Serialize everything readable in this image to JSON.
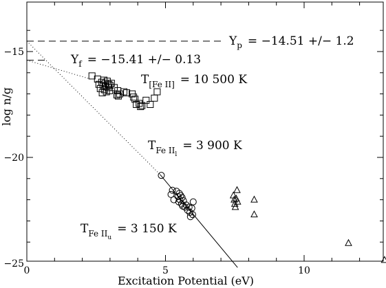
{
  "chart_data": {
    "type": "scatter",
    "xlabel": "Excitation Potential (eV)",
    "ylabel": "log n/g",
    "xlim": [
      0,
      13
    ],
    "ylim": [
      -25.2,
      -13.7
    ],
    "x_ticks": [
      0,
      5,
      10
    ],
    "y_ticks": [
      -15,
      -20,
      -25
    ],
    "grid": false,
    "annotations": {
      "yp": {
        "main": "Y",
        "sub": "p",
        "rest": "= −14.51 +/− 1.2"
      },
      "yf": {
        "main": "Y",
        "sub": "f",
        "rest": "= −15.41 +/− 0.13"
      },
      "t_feii": {
        "main": "T",
        "sub": "[Fe II]",
        "rest": "= 10 500 K"
      },
      "t_feii_l": {
        "main": "T",
        "sub": "Fe II",
        "subsub": "l",
        "rest": "= 3 900 K"
      },
      "t_feii_u": {
        "main": "T",
        "sub": "Fe II",
        "subsub": "u",
        "rest": "= 3 150 K"
      }
    },
    "lines": [
      {
        "style": "dashed",
        "points": [
          [
            0,
            -14.51
          ],
          [
            7.0,
            -14.51
          ]
        ]
      },
      {
        "style": "dashed",
        "points": [
          [
            0,
            -15.41
          ],
          [
            0.7,
            -15.41
          ]
        ]
      },
      {
        "style": "dotted",
        "points": [
          [
            0,
            -15.41
          ],
          [
            2.3,
            -16.3
          ]
        ]
      },
      {
        "style": "dotted",
        "points": [
          [
            0,
            -14.51
          ],
          [
            4.8,
            -20.8
          ]
        ]
      },
      {
        "style": "solid",
        "points": [
          [
            4.8,
            -20.8
          ],
          [
            7.6,
            -25.2
          ]
        ]
      }
    ],
    "series": [
      {
        "marker": "square",
        "points": [
          [
            2.35,
            -16.15
          ],
          [
            2.55,
            -16.3
          ],
          [
            2.6,
            -16.55
          ],
          [
            2.65,
            -16.75
          ],
          [
            2.7,
            -16.45
          ],
          [
            2.72,
            -16.95
          ],
          [
            2.75,
            -16.6
          ],
          [
            2.78,
            -16.35
          ],
          [
            2.8,
            -16.8
          ],
          [
            2.83,
            -16.5
          ],
          [
            2.85,
            -16.65
          ],
          [
            2.87,
            -16.9
          ],
          [
            2.9,
            -16.4
          ],
          [
            2.93,
            -16.7
          ],
          [
            2.95,
            -16.55
          ],
          [
            2.98,
            -16.85
          ],
          [
            3.0,
            -16.6
          ],
          [
            3.05,
            -16.5
          ],
          [
            3.15,
            -16.7
          ],
          [
            3.25,
            -17.05
          ],
          [
            3.28,
            -16.85
          ],
          [
            3.3,
            -17.1
          ],
          [
            3.35,
            -17.0
          ],
          [
            3.5,
            -16.9
          ],
          [
            3.6,
            -16.95
          ],
          [
            3.8,
            -17.0
          ],
          [
            3.85,
            -17.15
          ],
          [
            3.9,
            -17.25
          ],
          [
            3.95,
            -17.5
          ],
          [
            4.05,
            -17.45
          ],
          [
            4.1,
            -17.6
          ],
          [
            4.15,
            -17.55
          ],
          [
            4.3,
            -17.3
          ],
          [
            4.45,
            -17.5
          ],
          [
            4.6,
            -17.2
          ],
          [
            4.7,
            -16.9
          ]
        ]
      },
      {
        "marker": "circle",
        "points": [
          [
            4.85,
            -20.85
          ],
          [
            5.2,
            -21.75
          ],
          [
            5.25,
            -21.55
          ],
          [
            5.3,
            -22.0
          ],
          [
            5.4,
            -21.6
          ],
          [
            5.45,
            -21.85
          ],
          [
            5.48,
            -22.1
          ],
          [
            5.5,
            -21.7
          ],
          [
            5.52,
            -22.0
          ],
          [
            5.55,
            -21.8
          ],
          [
            5.58,
            -22.2
          ],
          [
            5.6,
            -21.9
          ],
          [
            5.62,
            -22.3
          ],
          [
            5.65,
            -22.05
          ],
          [
            5.7,
            -22.35
          ],
          [
            5.75,
            -22.25
          ],
          [
            5.8,
            -22.5
          ],
          [
            5.85,
            -22.35
          ],
          [
            5.88,
            -22.6
          ],
          [
            5.9,
            -22.8
          ],
          [
            5.95,
            -22.4
          ],
          [
            5.98,
            -22.7
          ],
          [
            6.0,
            -22.1
          ]
        ]
      },
      {
        "marker": "triangle",
        "points": [
          [
            7.45,
            -21.8
          ],
          [
            7.48,
            -22.0
          ],
          [
            7.5,
            -22.2
          ],
          [
            7.52,
            -22.35
          ],
          [
            7.55,
            -21.95
          ],
          [
            7.58,
            -21.55
          ],
          [
            7.6,
            -22.1
          ],
          [
            8.2,
            -22.0
          ],
          [
            8.2,
            -22.7
          ],
          [
            11.6,
            -24.05
          ],
          [
            12.9,
            -24.85
          ]
        ]
      }
    ]
  }
}
